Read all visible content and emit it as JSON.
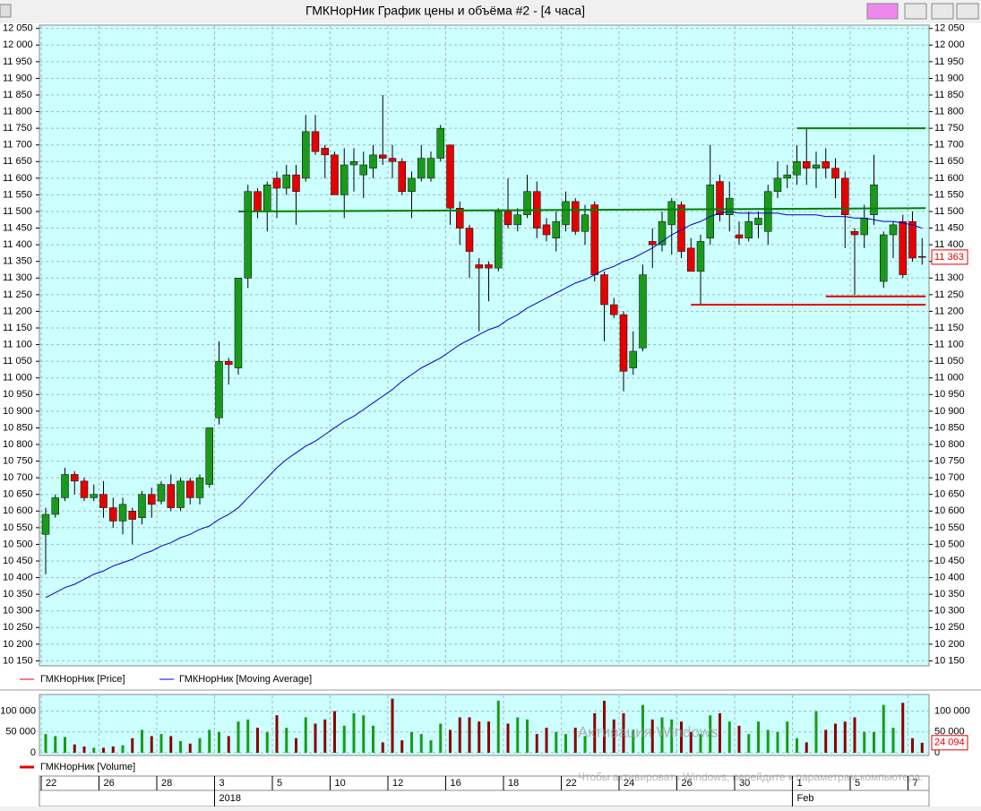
{
  "window_title": "ГМКНорНик График цены и объёма #2 - [4 часа]",
  "chart_data": [
    {
      "type": "candlestick",
      "legend": [
        "ГМКНорНик [Price]",
        "ГМКНорНик [Moving Average]"
      ],
      "up_color": "#1a9a1a",
      "down_color": "#e60000",
      "grid": true,
      "ylim": [
        10135,
        12060
      ],
      "yticks": [
        {
          "value": 10150,
          "label": "10 150"
        },
        {
          "value": 10200,
          "label": "10 200"
        },
        {
          "value": 10250,
          "label": "10 250"
        },
        {
          "value": 10300,
          "label": "10 300"
        },
        {
          "value": 10350,
          "label": "10 350"
        },
        {
          "value": 10400,
          "label": "10 400"
        },
        {
          "value": 10450,
          "label": "10 450"
        },
        {
          "value": 10500,
          "label": "10 500"
        },
        {
          "value": 10550,
          "label": "10 550"
        },
        {
          "value": 10600,
          "label": "10 600"
        },
        {
          "value": 10650,
          "label": "10 650"
        },
        {
          "value": 10700,
          "label": "10 700"
        },
        {
          "value": 10750,
          "label": "10 750"
        },
        {
          "value": 10800,
          "label": "10 800"
        },
        {
          "value": 10850,
          "label": "10 850"
        },
        {
          "value": 10900,
          "label": "10 900"
        },
        {
          "value": 10950,
          "label": "10 950"
        },
        {
          "value": 11000,
          "label": "11 000"
        },
        {
          "value": 11050,
          "label": "11 050"
        },
        {
          "value": 11100,
          "label": "11 100"
        },
        {
          "value": 11150,
          "label": "11 150"
        },
        {
          "value": 11200,
          "label": "11 200"
        },
        {
          "value": 11250,
          "label": "11 250"
        },
        {
          "value": 11300,
          "label": "11 300"
        },
        {
          "value": 11350,
          "label": "11 350"
        },
        {
          "value": 11400,
          "label": "11 400"
        },
        {
          "value": 11450,
          "label": "11 450"
        },
        {
          "value": 11500,
          "label": "11 500"
        },
        {
          "value": 11550,
          "label": "11 550"
        },
        {
          "value": 11600,
          "label": "11 600"
        },
        {
          "value": 11650,
          "label": "11 650"
        },
        {
          "value": 11700,
          "label": "11 700"
        },
        {
          "value": 11750,
          "label": "11 750"
        },
        {
          "value": 11800,
          "label": "11 800"
        },
        {
          "value": 11850,
          "label": "11 850"
        },
        {
          "value": 11900,
          "label": "11 900"
        },
        {
          "value": 11950,
          "label": "11 950"
        },
        {
          "value": 12000,
          "label": "12 000"
        },
        {
          "value": 12050,
          "label": "12 050"
        }
      ],
      "open": [
        10530,
        10590,
        10640,
        10710,
        10690,
        10640,
        10650,
        10610,
        10570,
        10600,
        10580,
        10650,
        10630,
        10680,
        10610,
        10690,
        10640,
        10680,
        10880,
        11050,
        11030,
        11300,
        11560,
        11500,
        11600,
        11570,
        11610,
        11600,
        11740,
        11690,
        11670,
        11550,
        11640,
        11610,
        11630,
        11670,
        11660,
        11650,
        11560,
        11600,
        11600,
        11660,
        11700,
        11510,
        11450,
        11340,
        11340,
        11330,
        11500,
        11460,
        11490,
        11560,
        11460,
        11420,
        11460,
        11530,
        11440,
        11520,
        11310,
        11220,
        11190,
        11030,
        11090,
        11410,
        11400,
        11460,
        11520,
        11390,
        11320,
        11420,
        11590,
        11490,
        11430,
        11420,
        11460,
        11440,
        11560,
        11600,
        11610,
        11650,
        11630,
        11650,
        11630,
        11600,
        11440,
        11430,
        11490,
        11290,
        11430,
        11470,
        11470,
        11365
      ],
      "high": [
        10610,
        10650,
        10730,
        10720,
        10700,
        10680,
        10690,
        10640,
        10640,
        10610,
        10660,
        10670,
        10690,
        10710,
        10700,
        10700,
        10710,
        10850,
        11110,
        11060,
        11300,
        11580,
        11570,
        11590,
        11620,
        11640,
        11640,
        11790,
        11790,
        11700,
        11680,
        11690,
        11690,
        11680,
        11700,
        11850,
        11700,
        11660,
        11620,
        11700,
        11680,
        11760,
        11700,
        11530,
        11460,
        11360,
        11350,
        11510,
        11600,
        11510,
        11610,
        11590,
        11480,
        11500,
        11560,
        11540,
        11520,
        11530,
        11320,
        11240,
        11200,
        11140,
        11340,
        11450,
        11500,
        11540,
        11530,
        11420,
        11430,
        11700,
        11610,
        11590,
        11470,
        11500,
        11500,
        11580,
        11650,
        11640,
        11700,
        11750,
        11680,
        11690,
        11660,
        11620,
        11450,
        11520,
        11670,
        11440,
        11470,
        11490,
        11500,
        11420
      ],
      "low": [
        10410,
        10580,
        10630,
        10650,
        10630,
        10630,
        10580,
        10550,
        10530,
        10500,
        10560,
        10580,
        10620,
        10600,
        10600,
        10620,
        10620,
        10670,
        10860,
        10980,
        11010,
        11270,
        11480,
        11440,
        11480,
        11550,
        11460,
        11590,
        11670,
        11600,
        11550,
        11480,
        11560,
        11540,
        11600,
        11640,
        11600,
        11550,
        11480,
        11590,
        11590,
        11650,
        11460,
        11400,
        11300,
        11140,
        11230,
        11320,
        11450,
        11440,
        11480,
        11420,
        11410,
        11380,
        11440,
        11430,
        11400,
        11290,
        11110,
        11180,
        10960,
        11010,
        11080,
        11330,
        11380,
        11370,
        11360,
        11320,
        11220,
        11400,
        11470,
        11440,
        11400,
        11410,
        11420,
        11400,
        11540,
        11570,
        11580,
        11580,
        11570,
        11600,
        11540,
        11390,
        11250,
        11390,
        11460,
        11270,
        11360,
        11300,
        11350,
        11340
      ],
      "close": [
        10590,
        10640,
        10710,
        10690,
        10640,
        10650,
        10610,
        10570,
        10620,
        10575,
        10650,
        10620,
        10680,
        10610,
        10690,
        10640,
        10700,
        10850,
        11050,
        11040,
        11300,
        11560,
        11500,
        11580,
        11570,
        11610,
        11560,
        11740,
        11680,
        11670,
        11550,
        11640,
        11650,
        11640,
        11670,
        11660,
        11650,
        11560,
        11600,
        11660,
        11660,
        11750,
        11510,
        11450,
        11380,
        11330,
        11330,
        11500,
        11460,
        11490,
        11560,
        11450,
        11430,
        11470,
        11530,
        11440,
        11490,
        11310,
        11220,
        11190,
        11020,
        11080,
        11310,
        11400,
        11470,
        11530,
        11380,
        11320,
        11410,
        11580,
        11490,
        11540,
        11420,
        11470,
        11480,
        11560,
        11600,
        11610,
        11650,
        11630,
        11640,
        11630,
        11600,
        11490,
        11430,
        11480,
        11580,
        11430,
        11460,
        11310,
        11360,
        11363
      ],
      "close_label": "11 363",
      "moving_average": {
        "color": "#0000cc",
        "values": [
          10340,
          10355,
          10370,
          10380,
          10395,
          10410,
          10420,
          10435,
          10445,
          10455,
          10470,
          10480,
          10495,
          10505,
          10520,
          10530,
          10545,
          10555,
          10575,
          10590,
          10610,
          10640,
          10670,
          10700,
          10730,
          10755,
          10775,
          10795,
          10810,
          10830,
          10850,
          10870,
          10885,
          10905,
          10925,
          10945,
          10965,
          10990,
          11010,
          11030,
          11045,
          11060,
          11080,
          11100,
          11115,
          11130,
          11145,
          11155,
          11175,
          11190,
          11210,
          11225,
          11240,
          11255,
          11270,
          11285,
          11295,
          11310,
          11325,
          11335,
          11350,
          11360,
          11375,
          11390,
          11410,
          11430,
          11445,
          11460,
          11470,
          11485,
          11495,
          11500,
          11495,
          11495,
          11495,
          11495,
          11495,
          11490,
          11490,
          11490,
          11490,
          11485,
          11485,
          11485,
          11480,
          11480,
          11475,
          11470,
          11470,
          11465,
          11460,
          11450
        ]
      },
      "levels": [
        {
          "color": "#008000",
          "x": [
            20,
            91
          ],
          "y": [
            11500,
            11510
          ]
        },
        {
          "color": "#008000",
          "x": [
            78,
            91
          ],
          "y": [
            11750,
            11750
          ]
        },
        {
          "color": "#e60000",
          "x": [
            67,
            91
          ],
          "y": [
            11220,
            11220
          ]
        },
        {
          "color": "#e60000",
          "x": [
            81,
            91
          ],
          "y": [
            11245,
            11245
          ]
        }
      ]
    },
    {
      "type": "bar",
      "legend": "ГМКНорНик [Volume]",
      "legend_color": "#e60000",
      "up_color": "#1a9a1a",
      "down_color": "#8b0000",
      "ylim": [
        0,
        140000
      ],
      "yticks": [
        0,
        {
          "value": 50000,
          "label": "50 000"
        },
        {
          "value": 100000,
          "label": "100 000"
        }
      ],
      "values": [
        45000,
        40000,
        38000,
        20000,
        15000,
        12000,
        12000,
        15000,
        18000,
        35000,
        55000,
        40000,
        45000,
        40000,
        28000,
        22000,
        35000,
        55000,
        50000,
        40000,
        75000,
        80000,
        60000,
        50000,
        90000,
        60000,
        35000,
        85000,
        70000,
        80000,
        100000,
        65000,
        95000,
        90000,
        65000,
        25000,
        130000,
        30000,
        50000,
        45000,
        30000,
        70000,
        55000,
        85000,
        85000,
        75000,
        75000,
        125000,
        70000,
        85000,
        80000,
        45000,
        60000,
        50000,
        45000,
        60000,
        40000,
        95000,
        125000,
        80000,
        95000,
        55000,
        115000,
        80000,
        85000,
        80000,
        75000,
        50000,
        45000,
        90000,
        95000,
        75000,
        65000,
        45000,
        75000,
        55000,
        50000,
        75000,
        35000,
        25000,
        100000,
        55000,
        70000,
        75000,
        85000,
        50000,
        50000,
        115000,
        60000,
        120000,
        35000,
        24094
      ],
      "last_label": "24 094"
    }
  ],
  "x_axis": {
    "days": [
      "22",
      null,
      null,
      null,
      null,
      null,
      "26",
      null,
      null,
      null,
      null,
      null,
      "28",
      null,
      null,
      null,
      null,
      null,
      "3",
      null,
      null,
      null,
      null,
      null,
      "5",
      null,
      null,
      null,
      null,
      null,
      "10",
      null,
      null,
      null,
      null,
      null,
      "12",
      null,
      null,
      null,
      null,
      null,
      "16",
      null,
      null,
      null,
      null,
      null,
      "18",
      null,
      null,
      null,
      null,
      null,
      "22",
      null,
      null,
      null,
      null,
      null,
      "24",
      null,
      null,
      null,
      null,
      null,
      "26",
      null,
      null,
      null,
      null,
      null,
      "30",
      null,
      null,
      null,
      null,
      null,
      "1",
      null,
      null,
      null,
      null,
      null,
      "5",
      null,
      null,
      null,
      null,
      null,
      "7",
      null
    ],
    "months": [
      null,
      null,
      null,
      null,
      null,
      null,
      null,
      null,
      null,
      null,
      null,
      null,
      null,
      null,
      null,
      null,
      null,
      null,
      "2018",
      null,
      null,
      null,
      null,
      null,
      null,
      null,
      null,
      null,
      null,
      null,
      null,
      null,
      null,
      null,
      null,
      null,
      null,
      null,
      null,
      null,
      null,
      null,
      null,
      null,
      null,
      null,
      null,
      null,
      null,
      null,
      null,
      null,
      null,
      null,
      null,
      null,
      null,
      null,
      null,
      null,
      null,
      null,
      null,
      null,
      null,
      null,
      null,
      null,
      null,
      null,
      null,
      null,
      null,
      null,
      null,
      null,
      null,
      null,
      "Feb",
      null,
      null,
      null,
      null,
      null,
      null,
      null,
      null,
      null,
      null,
      null,
      null,
      null
    ]
  },
  "watermark": {
    "title": "Активация Windows",
    "text": "Чтобы активировать Windows, перейдите к параметрам компьютера."
  }
}
